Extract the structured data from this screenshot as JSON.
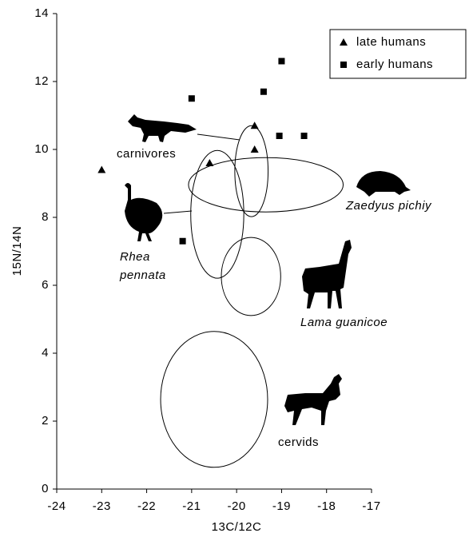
{
  "chart_data": {
    "type": "scatter",
    "xlabel": "13C/12C",
    "ylabel": "15N/14N",
    "xlim": [
      -24,
      -17
    ],
    "xticks": [
      -24,
      -23,
      -22,
      -21,
      -20,
      -19,
      -18,
      -17
    ],
    "ylim": [
      0,
      14
    ],
    "yticks": [
      0,
      2,
      4,
      6,
      8,
      10,
      12,
      14
    ],
    "legend_position": "upper right",
    "series": [
      {
        "name": "late humans",
        "marker": "triangle",
        "color": "#000000",
        "x": [
          -23.0,
          -20.6,
          -19.6,
          -19.6
        ],
        "values": [
          9.4,
          9.6,
          10.7,
          10.0
        ]
      },
      {
        "name": "early humans",
        "marker": "square",
        "color": "#000000",
        "x": [
          -21.0,
          -19.4,
          -19.0,
          -19.05,
          -18.5,
          -21.2
        ],
        "values": [
          11.5,
          11.7,
          12.6,
          10.4,
          10.4,
          7.3
        ]
      }
    ],
    "regions": [
      {
        "cx": -19.67,
        "cy": 9.36,
        "rx": 0.37,
        "ry": 1.34
      },
      {
        "cx": -19.35,
        "cy": 8.96,
        "rx": 1.72,
        "ry": 0.8
      },
      {
        "cx": -20.43,
        "cy": 8.09,
        "rx": 0.59,
        "ry": 1.88
      },
      {
        "cx": -19.68,
        "cy": 6.26,
        "rx": 0.66,
        "ry": 1.15
      },
      {
        "cx": -20.5,
        "cy": 2.64,
        "rx": 1.19,
        "ry": 2.0
      }
    ],
    "annotations": [
      "carnivores",
      "Zaedyus pichiy",
      "Rhea",
      "pennata",
      "Lama guanicoe",
      "cervids"
    ]
  }
}
